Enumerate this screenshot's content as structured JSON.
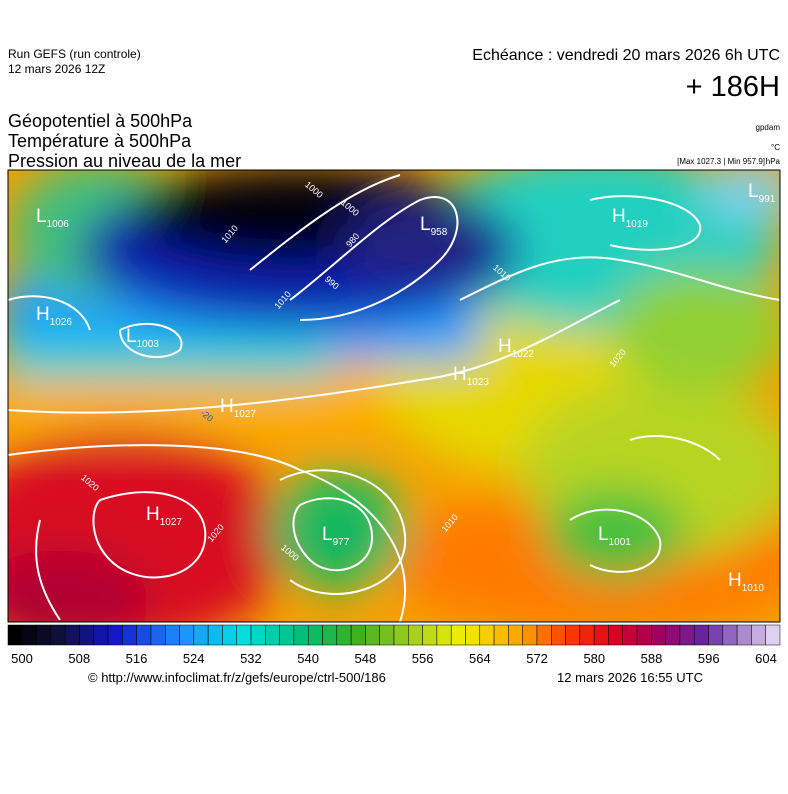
{
  "header": {
    "run": "Run GEFS (run controle)",
    "run_date": "12 mars 2026 12Z",
    "echeance": "Echéance : vendredi 20 mars 2026 6h UTC",
    "lead": "+ 186H"
  },
  "titles": [
    "Géopotentiel à 500hPa",
    "Température à 500hPa",
    "Pression au niveau de la mer"
  ],
  "units": {
    "geopotential": "gpdam",
    "temperature": "°C",
    "extremes": "[Max 1027.3 | Min 957.9]",
    "pressure": "hPa"
  },
  "centers": [
    {
      "type": "L",
      "value": 1006
    },
    {
      "type": "H",
      "value": 1019
    },
    {
      "type": "L",
      "value": 991
    },
    {
      "type": "L",
      "value": 958
    },
    {
      "type": "H",
      "value": 1026
    },
    {
      "type": "L",
      "value": 1003
    },
    {
      "type": "H",
      "value": 1022
    },
    {
      "type": "H",
      "value": 1023
    },
    {
      "type": "H",
      "value": 1027
    },
    {
      "type": "H",
      "value": 1027
    },
    {
      "type": "L",
      "value": 977
    },
    {
      "type": "L",
      "value": 1001
    },
    {
      "type": "H",
      "value": 1010
    }
  ],
  "isobar_labels": [
    1000,
    1010,
    1000,
    980,
    990,
    1010,
    1010,
    1020,
    1020,
    1020,
    1000,
    1010,
    -20
  ],
  "colorbar": {
    "ticks": [
      500,
      508,
      516,
      524,
      532,
      540,
      548,
      556,
      564,
      572,
      580,
      588,
      596,
      604
    ]
  },
  "footer": {
    "url": "© http://www.infoclimat.fr/z/gefs/europe/ctrl-500/186",
    "time": "12 mars 2026 16:55 UTC"
  }
}
